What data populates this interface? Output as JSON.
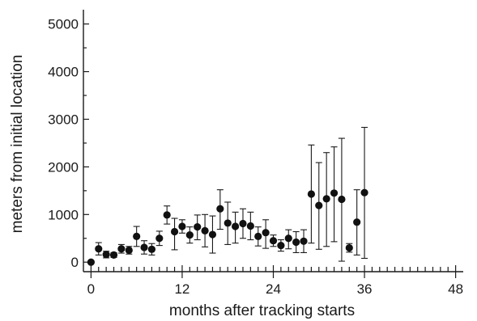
{
  "chart_data": {
    "type": "scatter",
    "title": "",
    "xlabel": "months after tracking starts",
    "ylabel": "meters from initial location",
    "xlim": [
      -1,
      49
    ],
    "ylim": [
      -200,
      5300
    ],
    "x_ticks": [
      0,
      12,
      24,
      36,
      48
    ],
    "x_tick_labels": [
      "0",
      "12",
      "24",
      "36",
      "48"
    ],
    "x_minor_step": 1,
    "y_ticks": [
      0,
      1000,
      2000,
      3000,
      4000,
      5000
    ],
    "y_tick_labels": [
      "0",
      "1000",
      "2000",
      "3000",
      "4000",
      "5000"
    ],
    "grid": false,
    "legend": "none",
    "marker_color": "#111111",
    "series": [
      {
        "x": [
          0,
          1,
          2,
          3,
          4,
          5,
          6,
          7,
          8,
          9,
          10,
          11,
          12,
          13,
          14,
          15,
          16,
          17,
          18,
          19,
          20,
          21,
          22,
          23,
          24,
          25,
          26,
          27,
          28,
          29,
          30,
          31,
          32,
          33,
          34,
          35,
          36
        ],
        "y": [
          0,
          280,
          160,
          150,
          280,
          250,
          540,
          310,
          270,
          500,
          990,
          640,
          750,
          570,
          740,
          660,
          580,
          1120,
          820,
          750,
          810,
          760,
          540,
          620,
          450,
          350,
          500,
          420,
          440,
          1430,
          1190,
          1330,
          1450,
          1320,
          300,
          840,
          1460
        ],
        "y_err_low": [
          0,
          130,
          70,
          50,
          90,
          80,
          210,
          140,
          120,
          150,
          190,
          380,
          140,
          170,
          270,
          340,
          390,
          430,
          450,
          350,
          310,
          290,
          200,
          330,
          120,
          120,
          220,
          220,
          240,
          1030,
          920,
          1000,
          1020,
          1300,
          90,
          690,
          1380
        ],
        "y_err_high": [
          0,
          130,
          70,
          50,
          90,
          80,
          210,
          140,
          120,
          150,
          190,
          280,
          140,
          170,
          250,
          340,
          390,
          400,
          440,
          300,
          310,
          290,
          200,
          270,
          120,
          120,
          180,
          220,
          240,
          1030,
          900,
          970,
          970,
          1280,
          90,
          680,
          1370
        ]
      }
    ]
  }
}
